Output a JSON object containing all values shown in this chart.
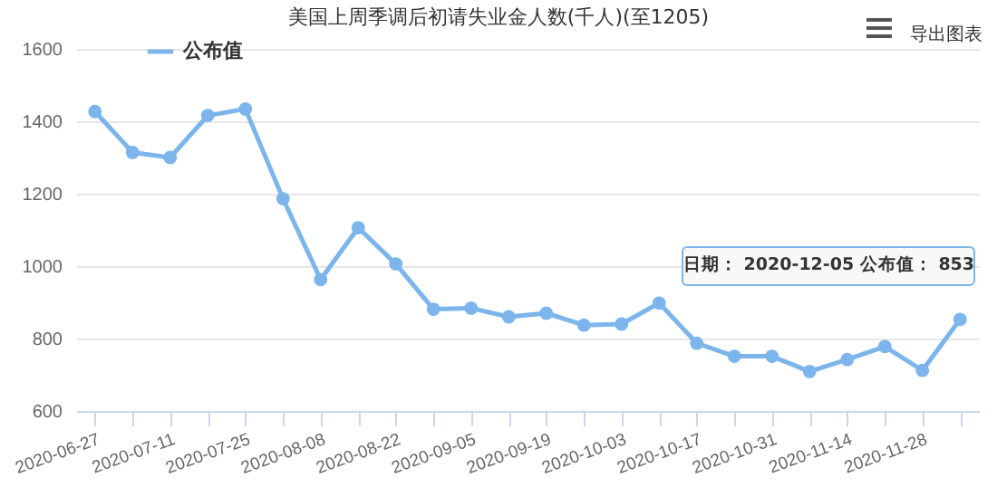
{
  "chart_data": {
    "type": "line",
    "title": "美国上周季调后初请失业金人数(千人)(至1205)",
    "categories": [
      "2020-06-27",
      null,
      "2020-07-11",
      null,
      "2020-07-25",
      null,
      "2020-08-08",
      null,
      "2020-08-22",
      null,
      "2020-09-05",
      null,
      "2020-09-19",
      null,
      "2020-10-03",
      null,
      "2020-10-17",
      null,
      "2020-10-31",
      null,
      "2020-11-14",
      null,
      "2020-11-28",
      null
    ],
    "series": [
      {
        "name": "公布值",
        "color": "#7cb5ec",
        "values": [
          1427,
          1314,
          1300,
          1416,
          1434,
          1186,
          963,
          1106,
          1006,
          881,
          884,
          860,
          870,
          837,
          840,
          898,
          787,
          751,
          751,
          709,
          742,
          778,
          712,
          853
        ]
      }
    ],
    "ylim": [
      600,
      1600
    ],
    "yticks": [
      600,
      800,
      1000,
      1200,
      1400,
      1600
    ],
    "grid": "y",
    "legend": "top left",
    "marker": "circle",
    "line_style": "solid",
    "annotations": [
      "日期： 2020-12-05 公布值： 853",
      "导出图表"
    ]
  }
}
